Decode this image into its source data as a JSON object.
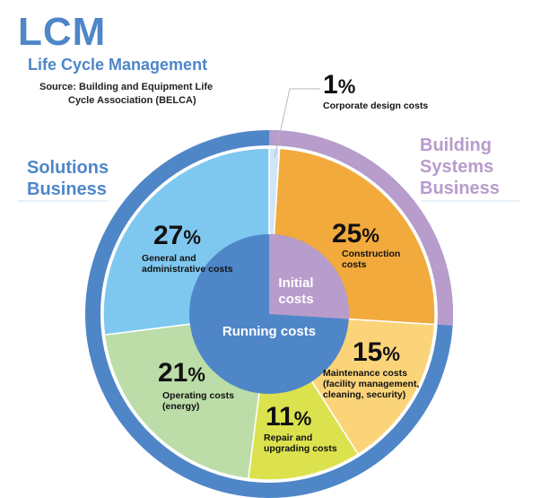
{
  "header": {
    "title": "LCM",
    "subtitle": "Life Cycle Management",
    "source_line1": "Source: Building and Equipment Life",
    "source_line2": "Cycle Association (BELCA)"
  },
  "business": {
    "left_line1": "Solutions",
    "left_line2": "Business",
    "right_line1": "Building",
    "right_line2": "Systems",
    "right_line3": "Business"
  },
  "colors": {
    "brand_blue": "#4e86c8",
    "lavender": "#b79ccc",
    "construction": "#f2aa3c",
    "maintenance": "#fbd47a",
    "repair": "#dbe24d",
    "operating": "#bcdca8",
    "general": "#7ec8f0",
    "corporate": "#cfe6f7"
  },
  "chart_data": {
    "type": "pie",
    "categories": [
      "Corporate design costs",
      "Construction costs",
      "Maintenance costs (facility management, cleaning, security)",
      "Repair and upgrading costs",
      "Operating costs (energy)",
      "General and administrative costs"
    ],
    "values": [
      1,
      25,
      15,
      11,
      21,
      27
    ],
    "labels": [
      "1%",
      "25%",
      "15%",
      "11%",
      "21%",
      "27%"
    ],
    "label_lines": [
      [
        "Corporate design costs"
      ],
      [
        "Construction",
        "costs"
      ],
      [
        "Maintenance costs",
        "(facility management,",
        "cleaning, security)"
      ],
      [
        "Repair and",
        "upgrading costs"
      ],
      [
        "Operating costs",
        "(energy)"
      ],
      [
        "General and",
        "administrative costs"
      ]
    ],
    "inner": {
      "initial_line1": "Initial",
      "initial_line2": "costs",
      "running": "Running costs"
    }
  }
}
